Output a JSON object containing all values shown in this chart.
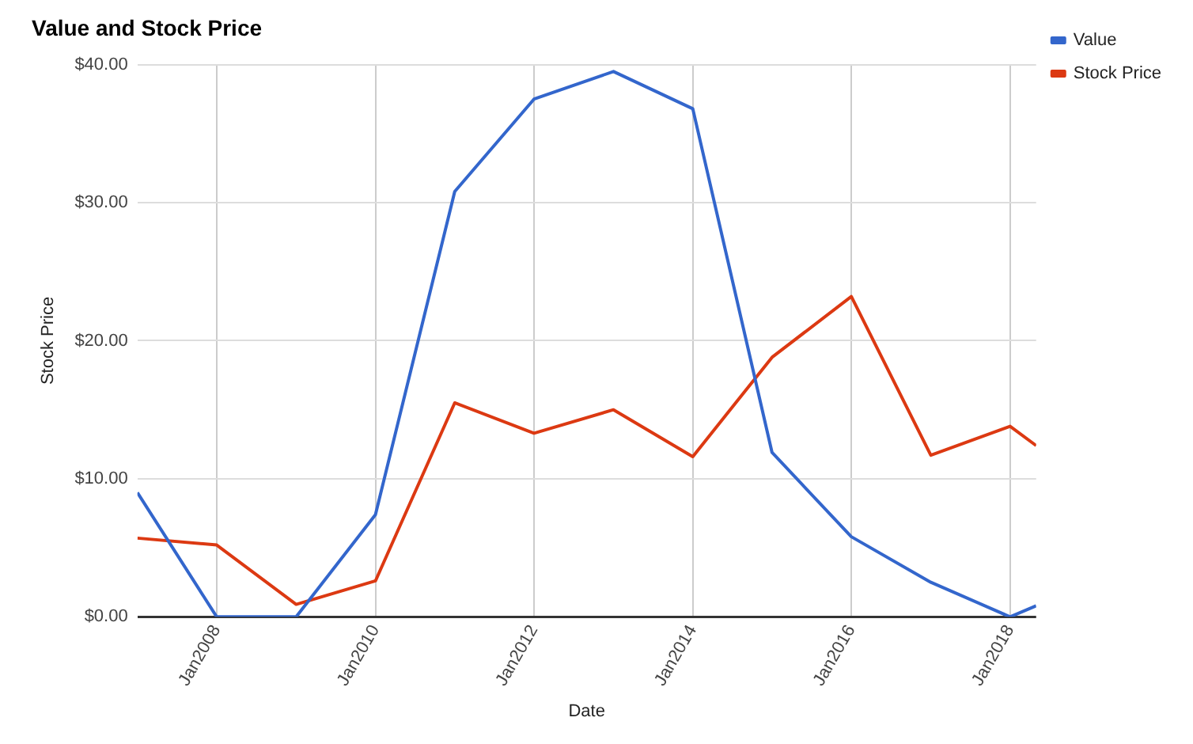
{
  "chart_data": {
    "type": "line",
    "title": "Value and Stock Price",
    "xlabel": "Date",
    "ylabel": "Stock Price",
    "x": [
      "2007-01",
      "2008-01",
      "2009-01",
      "2010-01",
      "2011-01",
      "2012-01",
      "2013-01",
      "2014-01",
      "2015-01",
      "2016-01",
      "2017-01",
      "2018-01",
      "2018-05"
    ],
    "series": [
      {
        "name": "Value",
        "color": "#3366cc",
        "values": [
          9.0,
          0,
          0,
          7.4,
          30.8,
          37.5,
          39.5,
          36.8,
          11.9,
          5.8,
          2.5,
          0,
          0.8
        ]
      },
      {
        "name": "Stock Price",
        "color": "#dc3912",
        "values": [
          5.7,
          5.2,
          0.9,
          2.6,
          15.5,
          13.3,
          15.0,
          11.6,
          18.8,
          23.2,
          11.7,
          13.8,
          12.4
        ]
      }
    ],
    "xlim": [
      "2007-01",
      "2018-05"
    ],
    "xticks": [
      {
        "value": "2008-01",
        "label": "Jan2008"
      },
      {
        "value": "2010-01",
        "label": "Jan2010"
      },
      {
        "value": "2012-01",
        "label": "Jan2012"
      },
      {
        "value": "2014-01",
        "label": "Jan2014"
      },
      {
        "value": "2016-01",
        "label": "Jan2016"
      },
      {
        "value": "2018-01",
        "label": "Jan2018"
      }
    ],
    "ylim": [
      0,
      40
    ],
    "yticks": [
      {
        "value": 0,
        "label": "$0.00"
      },
      {
        "value": 10,
        "label": "$10.00"
      },
      {
        "value": 20,
        "label": "$20.00"
      },
      {
        "value": 30,
        "label": "$30.00"
      },
      {
        "value": 40,
        "label": "$40.00"
      }
    ],
    "grid": true,
    "legend": "top right",
    "marker": "none",
    "line_style": "solid"
  }
}
